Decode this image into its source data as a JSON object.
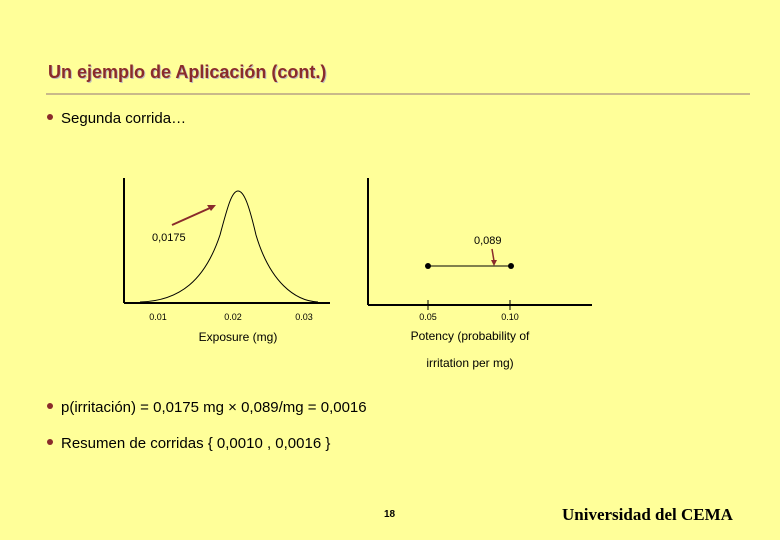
{
  "slide": {
    "title": "Un ejemplo de Aplicación (cont.)",
    "bullets": [
      "Segunda corrida…",
      "p(irritación) = 0,0175 mg × 0,089/mg = 0,0016",
      "Resumen de corridas { 0,0010 , 0,0016 }"
    ],
    "page_number": "18",
    "footer": "Universidad del CEMA"
  },
  "charts": {
    "left": {
      "ticks": [
        "0.01",
        "0.02",
        "0.03"
      ],
      "xlabel": "Exposure (mg)",
      "annotation": "0,0175"
    },
    "right": {
      "ticks": [
        "0.05",
        "0.10"
      ],
      "xlabel_line1": "Potency (probability of",
      "xlabel_line2": "irritation per mg)",
      "annotation": "0,089"
    }
  },
  "colors": {
    "accent": "#8a2b2b",
    "background": "#ffff99"
  }
}
